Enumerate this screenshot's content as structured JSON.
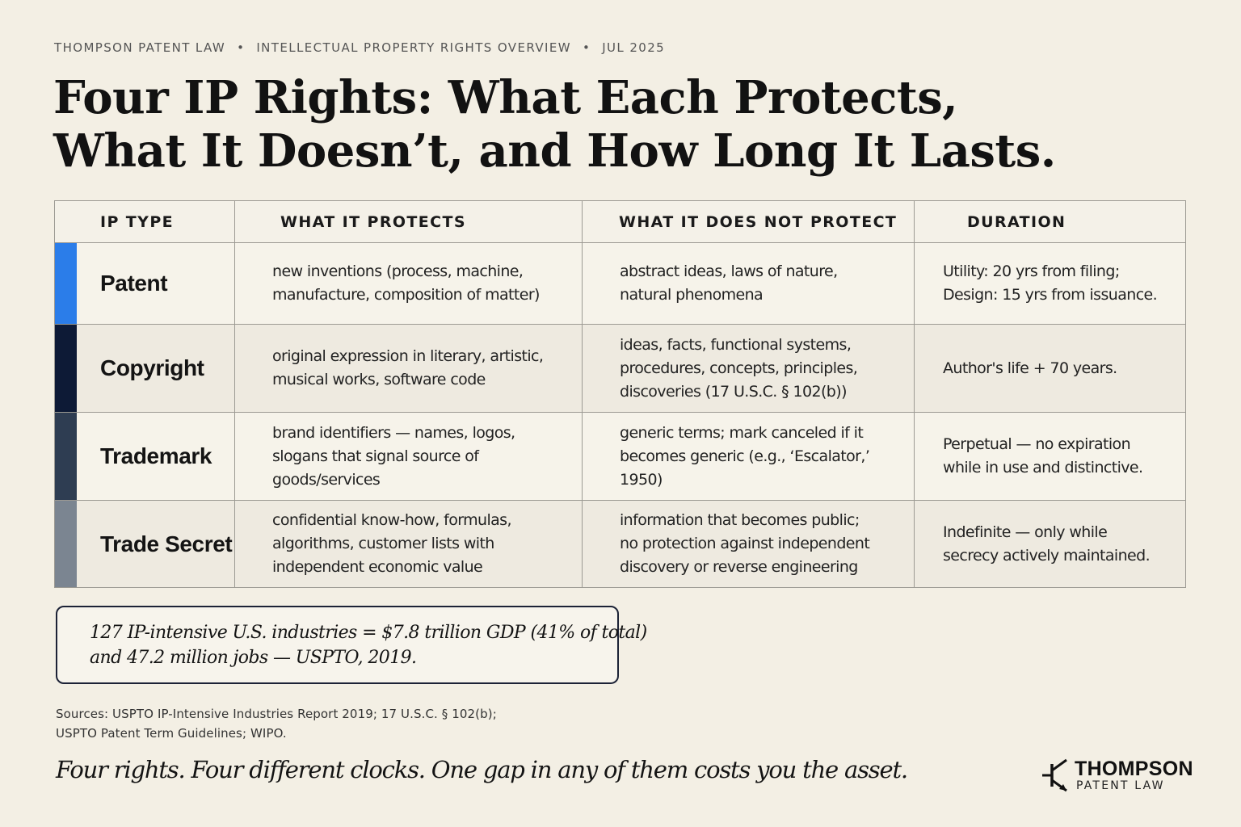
{
  "header": {
    "firm": "THOMPSON PATENT LAW",
    "topic": "INTELLECTUAL PROPERTY RIGHTS OVERVIEW",
    "date": "JUL 2025",
    "separator": "•",
    "title_line1": "Four IP Rights: What Each Protects,",
    "title_line2": "What It Doesn’t, and How Long It Lasts."
  },
  "table": {
    "columns": [
      "IP TYPE",
      "WHAT IT PROTECTS",
      "WHAT IT DOES NOT PROTECT",
      "DURATION"
    ],
    "rows": [
      {
        "type": "Patent",
        "color": "#2b7de9",
        "protects": [
          "new inventions (process, machine,",
          "manufacture, composition of matter)"
        ],
        "not_protect": [
          "abstract ideas, laws of nature,",
          "natural phenomena"
        ],
        "duration": [
          "Utility: 20 yrs from filing;",
          "Design: 15 yrs from issuance."
        ]
      },
      {
        "type": "Copyright",
        "color": "#0d1a36",
        "protects": [
          "original expression in literary, artistic,",
          "musical works, software code"
        ],
        "not_protect": [
          "ideas, facts, functional systems,",
          "procedures, concepts, principles,",
          "discoveries (17 U.S.C. § 102(b))"
        ],
        "duration": [
          "Author's life + 70 years."
        ]
      },
      {
        "type": "Trademark",
        "color": "#2e3d52",
        "protects": [
          "brand identifiers — names, logos,",
          "slogans that signal source of",
          "goods/services"
        ],
        "not_protect": [
          "generic terms; mark canceled if it",
          "becomes generic (e.g., ‘Escalator,’",
          "1950)"
        ],
        "duration": [
          "Perpetual — no expiration",
          "while in use and distinctive."
        ]
      },
      {
        "type": "Trade Secret",
        "color": "#7b8591",
        "protects": [
          "confidential know-how, formulas,",
          "algorithms, customer lists with",
          "independent economic value"
        ],
        "not_protect": [
          "information that becomes public;",
          "no protection against independent",
          "discovery or reverse engineering"
        ],
        "duration": [
          "Indefinite — only while",
          "secrecy actively maintained."
        ]
      }
    ]
  },
  "callout": {
    "line1": "127 IP-intensive U.S. industries = $7.8 trillion GDP (41% of total)",
    "line2": "and 47.2 million jobs — USPTO, 2019."
  },
  "sources": {
    "line1": "Sources: USPTO IP-Intensive Industries Report 2019; 17 U.S.C. § 102(b);",
    "line2": "USPTO Patent Term Guidelines; WIPO."
  },
  "tagline": "Four rights. Four different clocks. One gap in any of them costs you the asset.",
  "logo": {
    "name": "THOMPSON",
    "sub": "PATENT LAW"
  }
}
